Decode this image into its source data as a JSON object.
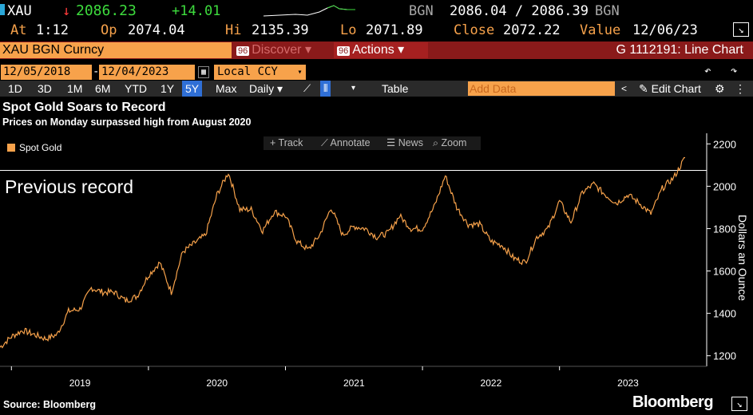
{
  "quote": {
    "ticker": "XAU",
    "arrow": "↓",
    "last": "2086.23",
    "change": "+14.01",
    "src1": "BGN",
    "bidask": "2086.04 / 2086.39",
    "src2": "BGN",
    "at_label": "At",
    "at_value": "1:12",
    "op_label": "Op",
    "op_value": "2074.04",
    "hi_label": "Hi",
    "hi_value": "2135.39",
    "lo_label": "Lo",
    "lo_value": "2071.89",
    "close_label": "Close",
    "close_value": "2072.22",
    "value_label": "Value",
    "value_value": "12/06/23"
  },
  "security": {
    "name": "XAU BGN Curncy",
    "discover_num": "96",
    "discover": "Discover",
    "actions_num": "96",
    "actions": "Actions",
    "chart_id": "G 1112191: Line Chart"
  },
  "dates": {
    "start": "12/05/2018",
    "end": "12/04/2023",
    "ccy": "Local CCY"
  },
  "toolbar": {
    "periods": [
      "1D",
      "3D",
      "1M",
      "6M",
      "YTD",
      "1Y",
      "5Y",
      "Max"
    ],
    "selected": "5Y",
    "freq": "Daily",
    "table": "Table",
    "add_data": "Add Data",
    "edit_chart": "Edit Chart"
  },
  "tools": {
    "track": "Track",
    "annotate": "Annotate",
    "news": "News",
    "zoom": "Zoom"
  },
  "colors": {
    "line": "#f7a24b",
    "accent": "#f7a24b",
    "bar": "#8a1a1a",
    "selected": "#2f6fd6"
  },
  "chart_data": {
    "type": "line",
    "title": "Spot Gold Soars to Record",
    "subtitle": "Prices on Monday surpassed high from August 2020",
    "ylabel": "Dollars an Ounce",
    "ylim": [
      1150,
      2250
    ],
    "yticks": [
      1200,
      1400,
      1600,
      1800,
      2000,
      2200
    ],
    "xticks": [
      "2019",
      "2020",
      "2021",
      "2022",
      "2023"
    ],
    "annotation": {
      "text": "Previous record",
      "value": 2075
    },
    "series": [
      {
        "name": "Spot Gold",
        "x": [
          "2018-12",
          "2019-01",
          "2019-02",
          "2019-03",
          "2019-04",
          "2019-05",
          "2019-06",
          "2019-07",
          "2019-08",
          "2019-09",
          "2019-10",
          "2019-11",
          "2019-12",
          "2020-01",
          "2020-02",
          "2020-03",
          "2020-04",
          "2020-05",
          "2020-06",
          "2020-07",
          "2020-08",
          "2020-09",
          "2020-10",
          "2020-11",
          "2020-12",
          "2021-01",
          "2021-02",
          "2021-03",
          "2021-04",
          "2021-05",
          "2021-06",
          "2021-07",
          "2021-08",
          "2021-09",
          "2021-10",
          "2021-11",
          "2021-12",
          "2022-01",
          "2022-02",
          "2022-03",
          "2022-04",
          "2022-05",
          "2022-06",
          "2022-07",
          "2022-08",
          "2022-09",
          "2022-10",
          "2022-11",
          "2022-12",
          "2023-01",
          "2023-02",
          "2023-03",
          "2023-04",
          "2023-05",
          "2023-06",
          "2023-07",
          "2023-08",
          "2023-09",
          "2023-10",
          "2023-11",
          "2023-12"
        ],
        "values": [
          1240,
          1290,
          1320,
          1300,
          1280,
          1300,
          1410,
          1420,
          1520,
          1500,
          1500,
          1460,
          1480,
          1580,
          1640,
          1500,
          1690,
          1730,
          1770,
          1960,
          2065,
          1890,
          1890,
          1790,
          1880,
          1860,
          1740,
          1700,
          1770,
          1900,
          1770,
          1810,
          1800,
          1760,
          1780,
          1860,
          1800,
          1800,
          1900,
          2050,
          1900,
          1820,
          1820,
          1740,
          1720,
          1660,
          1640,
          1760,
          1800,
          1930,
          1830,
          1970,
          2010,
          1960,
          1920,
          1960,
          1920,
          1870,
          1990,
          2040,
          2135
        ]
      }
    ]
  },
  "source": "Source: Bloomberg",
  "brand": "Bloomberg"
}
